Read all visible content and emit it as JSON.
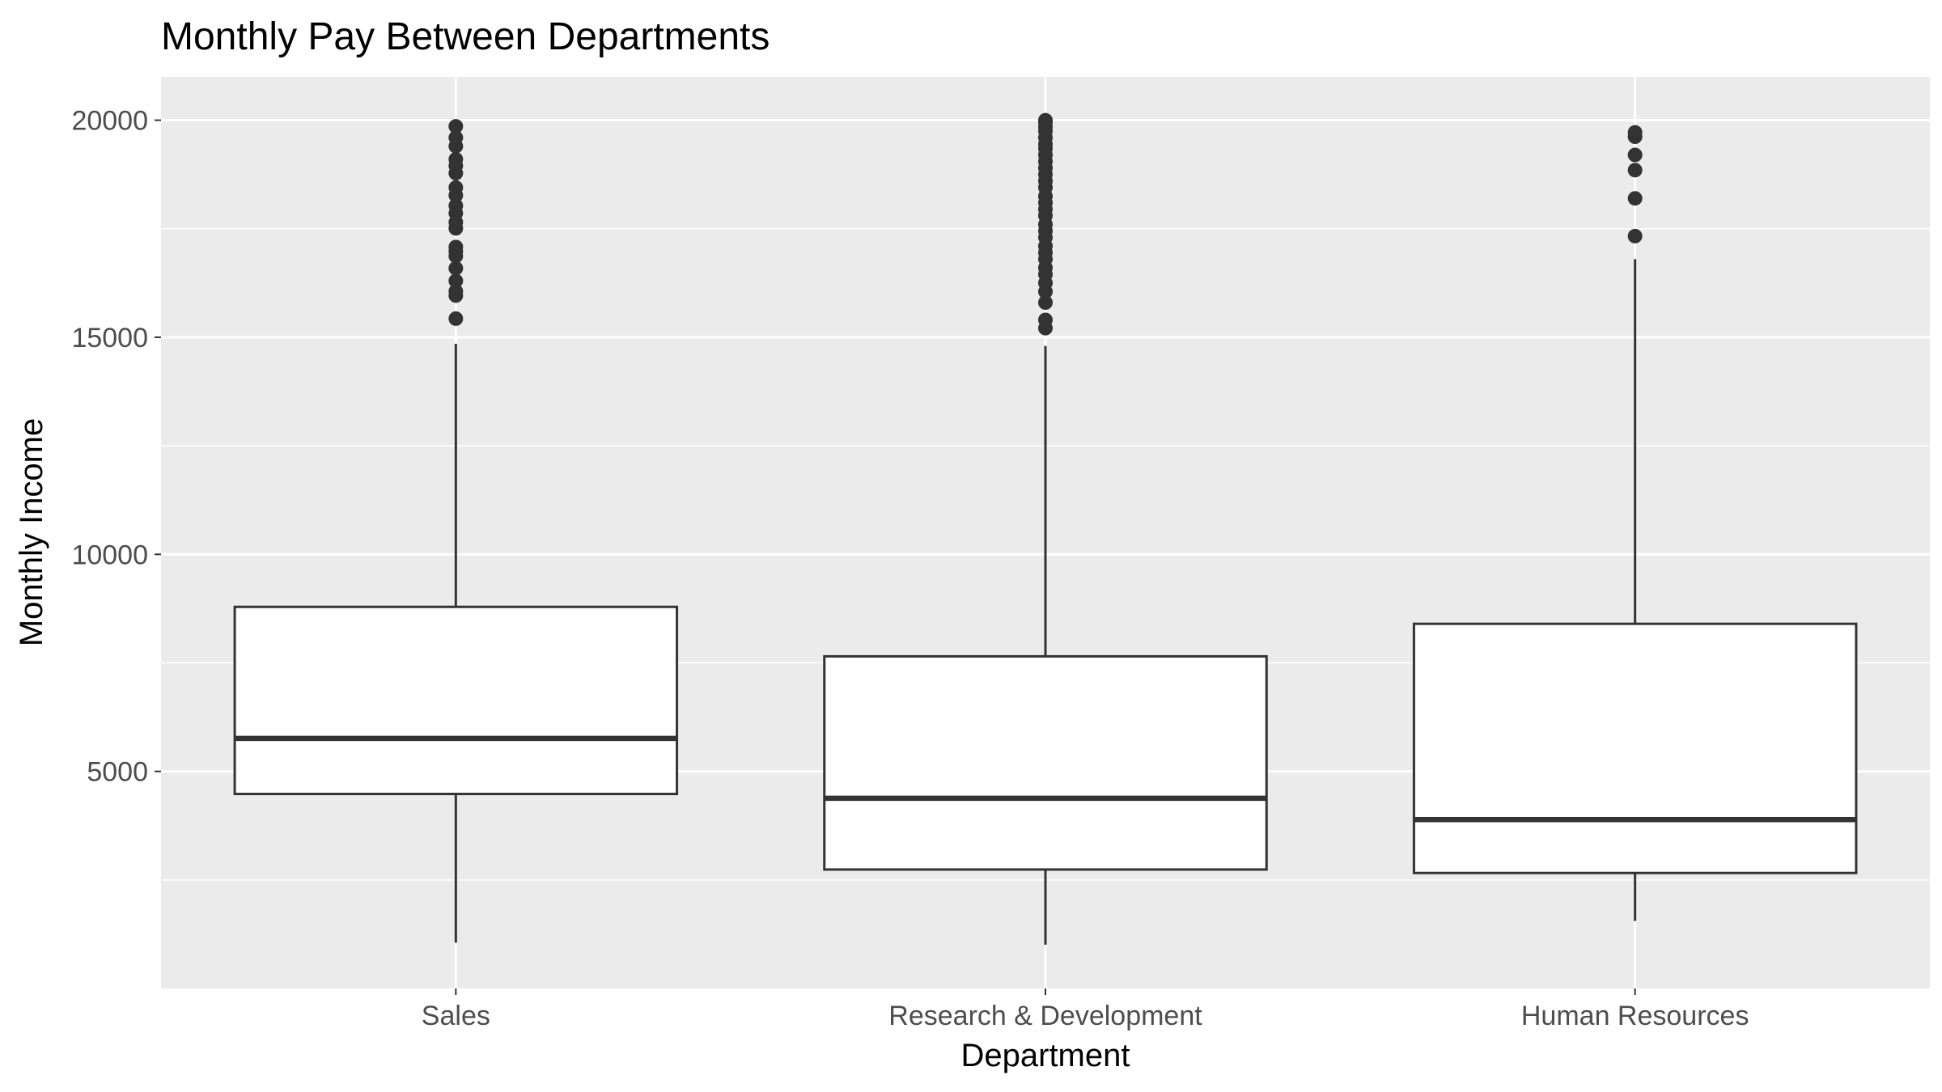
{
  "chart_data": {
    "type": "boxplot",
    "title": "Monthly Pay Between Departments",
    "xlabel": "Department",
    "ylabel": "Monthly Income",
    "categories": [
      "Sales",
      "Research & Development",
      "Human Resources"
    ],
    "ylim": [
      0,
      20999
    ],
    "yticks": [
      5000,
      10000,
      15000,
      20000
    ],
    "ytick_labels": [
      "5000",
      "10000",
      "15000",
      "20000"
    ],
    "grid": true,
    "panel_background": "#ebebeb",
    "grid_color": "#ffffff",
    "box_fill": "#ffffff",
    "box_stroke": "#333333",
    "boxes": [
      {
        "category": "Sales",
        "whisker_low": 1052,
        "q1": 4480,
        "median": 5760,
        "q3": 8790,
        "whisker_high": 14850,
        "outliers": [
          15430,
          15960,
          16060,
          16300,
          16590,
          16870,
          16980,
          17080,
          17510,
          17650,
          17860,
          18030,
          18270,
          18450,
          18780,
          18950,
          19100,
          19400,
          19600,
          19860
        ]
      },
      {
        "category": "Research & Development",
        "whisker_low": 1009,
        "q1": 2740,
        "median": 4380,
        "q3": 7650,
        "whisker_high": 14800,
        "outliers": [
          15210,
          15400,
          15800,
          16050,
          16250,
          16450,
          16600,
          16800,
          16950,
          17100,
          17300,
          17450,
          17600,
          17800,
          17950,
          18100,
          18250,
          18450,
          18600,
          18750,
          18900,
          19050,
          19200,
          19350,
          19450,
          19600,
          19750,
          19850,
          19950,
          19999
        ]
      },
      {
        "category": "Human Resources",
        "whisker_low": 1555,
        "q1": 2660,
        "median": 3890,
        "q3": 8400,
        "whisker_high": 16800,
        "outliers": [
          17330,
          18200,
          18850,
          19200,
          19620,
          19720
        ]
      }
    ]
  }
}
